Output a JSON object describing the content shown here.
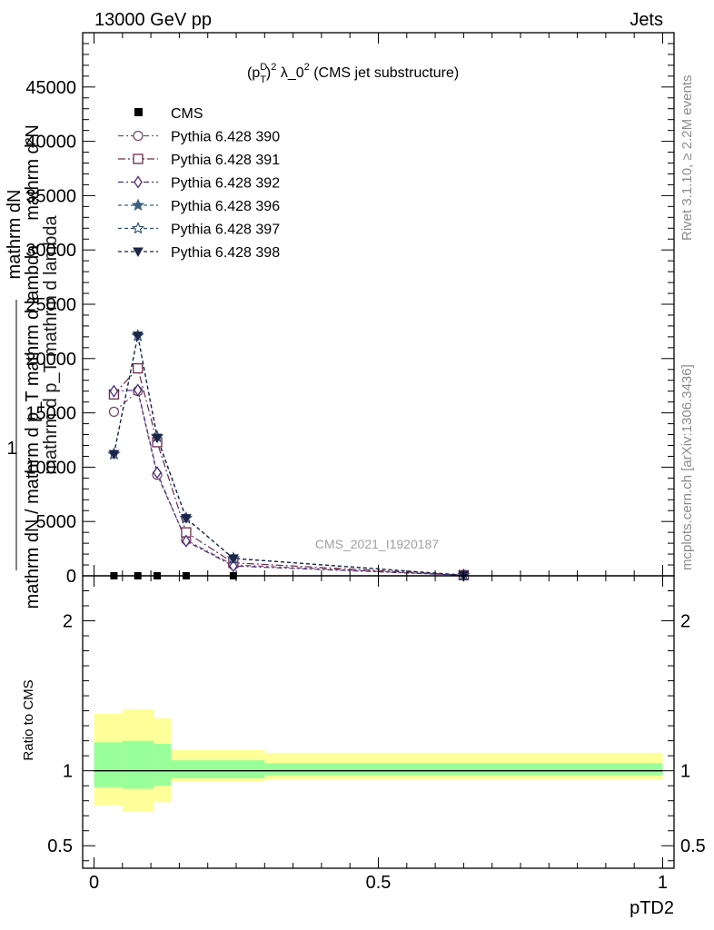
{
  "header": {
    "left": "13000 GeV pp",
    "right": "Jets"
  },
  "side_notes": {
    "rivet": "Rivet 3.1.10, ≥ 2.2M events",
    "site": "mcplots.cern.ch [arXiv:1306.3436]"
  },
  "chart_data": {
    "type": "line",
    "title": "(p_T^D)^2 λ_0^2 (CMS jet substructure)",
    "title_parts": {
      "open": "(p",
      "sup1": "D",
      "sub1": "T",
      "close": ")",
      "sup2": "2",
      "mid": " λ_0",
      "sup3": "2",
      "tail": " (CMS jet substructure)"
    },
    "watermark": "CMS_2021_I1920187",
    "xlabel": "pTD2",
    "ylabel_main": {
      "numerator": "1",
      "denominator": "mathrm dN / mathrm d p_T mathrm d lambda",
      "right": "mathrm d p_T mathrm d lambda",
      "fraction_num": "mathrm d²N",
      "plain": "mathrm dN"
    },
    "ylabel_ratio": "Ratio to CMS",
    "xlim": [
      -0.02,
      1.02
    ],
    "ylim_main": [
      0,
      50000
    ],
    "ylim_ratio": [
      0.35,
      2.3
    ],
    "x_ticks": [
      0,
      0.5,
      1
    ],
    "x_tick_labels": [
      "0",
      "0.5",
      "1"
    ],
    "y_ticks_main": [
      0,
      5000,
      10000,
      15000,
      20000,
      25000,
      30000,
      35000,
      40000,
      45000
    ],
    "y_tick_labels_main": [
      "0",
      "5000",
      "10000",
      "15000",
      "20000",
      "25000",
      "30000",
      "35000",
      "40000",
      "45000"
    ],
    "y_ticks_ratio": [
      0.5,
      1,
      2
    ],
    "y_tick_labels_ratio": [
      "0.5",
      "1",
      "2"
    ],
    "x": [
      0.035,
      0.077,
      0.111,
      0.162,
      0.245,
      0.65
    ],
    "data": {
      "name": "CMS",
      "x": [
        0.035,
        0.077,
        0.111,
        0.162,
        0.245
      ],
      "values": [
        0,
        0,
        0,
        0,
        0
      ]
    },
    "series": [
      {
        "name": "Pythia 6.428 390",
        "color": "#7a4a6a",
        "marker": "circle-open",
        "dash": "6,3,2,3",
        "values": [
          15100,
          17000,
          9300,
          3300,
          1000,
          50
        ]
      },
      {
        "name": "Pythia 6.428 391",
        "color": "#6b2c4a",
        "marker": "square-open",
        "dash": "8,3,2,3",
        "values": [
          16700,
          19100,
          12300,
          4000,
          1200,
          60
        ]
      },
      {
        "name": "Pythia 6.428 392",
        "color": "#4a2c7a",
        "marker": "diamond-open",
        "dash": "6,3,2,3",
        "values": [
          17000,
          17100,
          9500,
          3200,
          900,
          50
        ]
      },
      {
        "name": "Pythia 6.428 396",
        "color": "#3a6080",
        "marker": "star-filled",
        "dash": "4,3",
        "values": [
          11200,
          22100,
          12800,
          5300,
          1600,
          60
        ]
      },
      {
        "name": "Pythia 6.428 397",
        "color": "#2e4e70",
        "marker": "star-open",
        "dash": "4,3",
        "values": [
          11200,
          22100,
          12800,
          5300,
          1600,
          60
        ]
      },
      {
        "name": "Pythia 6.428 398",
        "color": "#1c2448",
        "marker": "triangle-down-filled",
        "dash": "4,3",
        "values": [
          11200,
          22100,
          12700,
          5300,
          1600,
          60
        ]
      }
    ],
    "ratio_bands": {
      "edges": [
        0.0,
        0.05,
        0.105,
        0.135,
        0.3,
        1.0
      ],
      "inner_low": [
        0.89,
        0.88,
        0.9,
        0.95,
        0.97
      ],
      "inner_high": [
        1.19,
        1.2,
        1.18,
        1.07,
        1.05
      ],
      "outer_low": [
        0.77,
        0.73,
        0.79,
        0.93,
        0.94
      ],
      "outer_high": [
        1.38,
        1.41,
        1.35,
        1.14,
        1.12
      ],
      "inner_color": "#99ff99",
      "outer_color": "#ffff99"
    },
    "grid": false,
    "legend_position": "top-left"
  }
}
